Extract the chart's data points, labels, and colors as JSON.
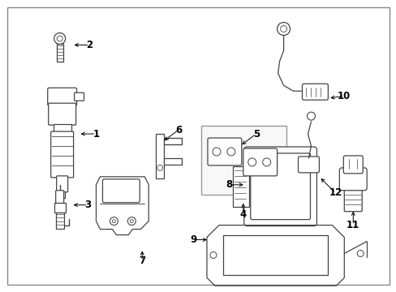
{
  "background_color": "#ffffff",
  "line_color": "#444444",
  "fig_width": 4.89,
  "fig_height": 3.6,
  "dpi": 100
}
